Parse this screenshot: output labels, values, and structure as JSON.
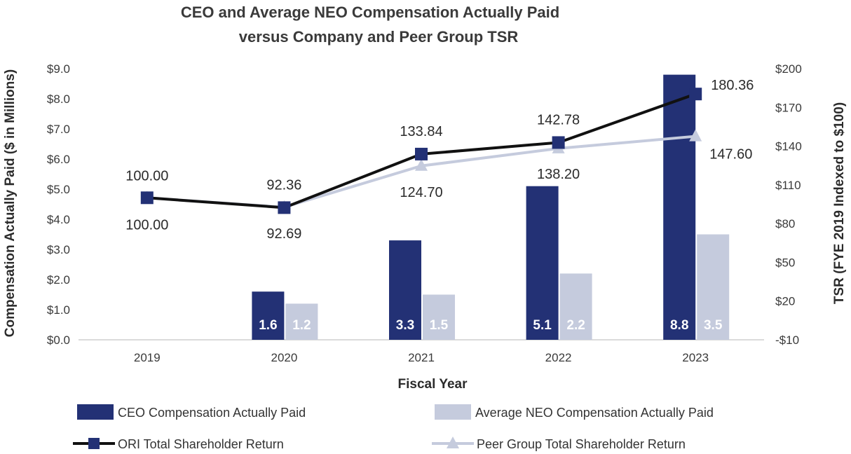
{
  "chart_data": {
    "type": "bar",
    "title": "CEO and Average NEO Compensation Actually Paid",
    "subtitle": "versus Company and Peer Group TSR",
    "xlabel": "Fiscal Year",
    "ylabel": "Compensation Actually Paid ($ in Millions)",
    "y2label": "TSR (FYE 2019 Indexed to $100)",
    "categories": [
      "2019",
      "2020",
      "2021",
      "2022",
      "2023"
    ],
    "ylim": [
      0,
      9
    ],
    "y_ticks": [
      "$0.0",
      "$1.0",
      "$2.0",
      "$3.0",
      "$4.0",
      "$5.0",
      "$6.0",
      "$7.0",
      "$8.0",
      "$9.0"
    ],
    "y2lim": [
      -10,
      200
    ],
    "y2_ticks": [
      "-$10",
      "$20",
      "$50",
      "$80",
      "$110",
      "$140",
      "$170",
      "$200"
    ],
    "y2_tick_values": [
      -10,
      20,
      50,
      80,
      110,
      140,
      170,
      200
    ],
    "bar_series": [
      {
        "name": "CEO Compensation Actually Paid",
        "color": "#233175",
        "values": [
          null,
          1.6,
          3.3,
          5.1,
          8.8
        ],
        "labels": [
          "",
          "1.6",
          "3.3",
          "5.1",
          "8.8"
        ]
      },
      {
        "name": "Average NEO Compensation Actually Paid",
        "color": "#c5cbdd",
        "values": [
          null,
          1.2,
          1.5,
          2.2,
          3.5
        ],
        "labels": [
          "",
          "1.2",
          "1.5",
          "2.2",
          "3.5"
        ]
      }
    ],
    "line_series": [
      {
        "name": "ORI Total Shareholder Return",
        "color": "#111111",
        "marker": "square",
        "marker_color": "#233175",
        "values": [
          100.0,
          92.36,
          133.84,
          142.78,
          180.36
        ],
        "labels": [
          "100.00",
          "92.36",
          "133.84",
          "142.78",
          "180.36"
        ]
      },
      {
        "name": "Peer Group Total Shareholder Return",
        "color": "#c5cbdd",
        "marker": "triangle",
        "marker_color": "#c5cbdd",
        "values": [
          100.0,
          92.69,
          124.7,
          138.2,
          147.6
        ],
        "labels": [
          "100.00",
          "92.69",
          "124.70",
          "138.20",
          "147.60"
        ]
      }
    ],
    "legend_position": "bottom"
  }
}
